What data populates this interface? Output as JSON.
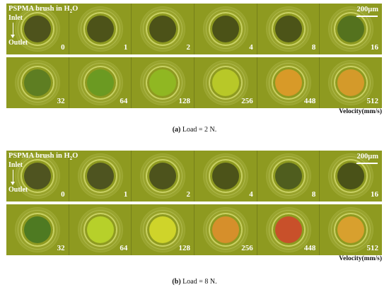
{
  "panel_a": {
    "title_main": "PSPMA brush in H",
    "title_sub": "2",
    "title_tail": "O",
    "inlet": "Inlet",
    "outlet": "Outlet",
    "scale_bar": "200μm",
    "velocity_label": "Velocity(mm/s)",
    "caption_letter": "(a)",
    "caption_text": " Load = 2 N.",
    "row1": [
      {
        "label": "0",
        "color": "#4e531c"
      },
      {
        "label": "1",
        "color": "#4d5319"
      },
      {
        "label": "2",
        "color": "#4c5218"
      },
      {
        "label": "4",
        "color": "#4b5217"
      },
      {
        "label": "8",
        "color": "#4c5418"
      },
      {
        "label": "16",
        "color": "#54721e"
      }
    ],
    "row2": [
      {
        "label": "32",
        "color": "#5e7e22"
      },
      {
        "label": "64",
        "color": "#6b9a22"
      },
      {
        "label": "128",
        "color": "#90b722"
      },
      {
        "label": "256",
        "color": "#b8c828"
      },
      {
        "label": "448",
        "color": "#d89a28"
      },
      {
        "label": "512",
        "color": "#d49a2a"
      }
    ]
  },
  "panel_b": {
    "title_main": "PSPMA brush in H",
    "title_sub": "2",
    "title_tail": "O",
    "inlet": "Inlet",
    "outlet": "Outlet",
    "scale_bar": "200μm",
    "velocity_label": "Velocity(mm/s)",
    "caption_letter": "(b)",
    "caption_text": " Load = 8 N.",
    "row1": [
      {
        "label": "0",
        "color": "#4f5420"
      },
      {
        "label": "1",
        "color": "#4e5420"
      },
      {
        "label": "2",
        "color": "#4d531c"
      },
      {
        "label": "4",
        "color": "#4c5319"
      },
      {
        "label": "8",
        "color": "#4f5d1e"
      },
      {
        "label": "16",
        "color": "#4a5218"
      }
    ],
    "row2": [
      {
        "label": "32",
        "color": "#4e7a22"
      },
      {
        "label": "64",
        "color": "#b7d02a"
      },
      {
        "label": "128",
        "color": "#cfd42a"
      },
      {
        "label": "256",
        "color": "#d68f2b"
      },
      {
        "label": "448",
        "color": "#c8502a"
      },
      {
        "label": "512",
        "color": "#d8a02e"
      }
    ]
  }
}
